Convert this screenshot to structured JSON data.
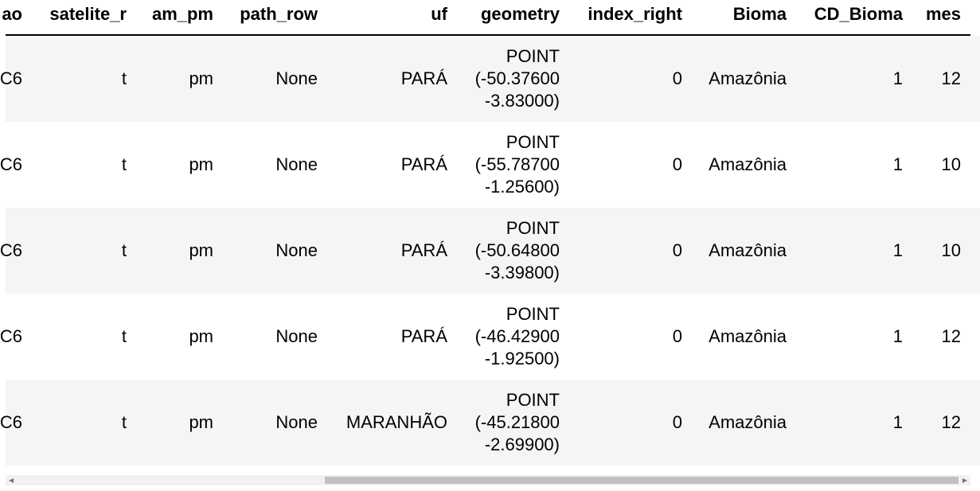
{
  "table": {
    "columns": [
      "ao",
      "satelite_r",
      "am_pm",
      "path_row",
      "uf",
      "geometry",
      "index_right",
      "Bioma",
      "CD_Bioma",
      "mes"
    ],
    "rows": [
      [
        "C6",
        "t",
        "pm",
        "None",
        "PARÁ",
        "POINT (-50.37600 -3.83000)",
        0,
        "Amazônia",
        1,
        12
      ],
      [
        "C6",
        "t",
        "pm",
        "None",
        "PARÁ",
        "POINT (-55.78700 -1.25600)",
        0,
        "Amazônia",
        1,
        10
      ],
      [
        "C6",
        "t",
        "pm",
        "None",
        "PARÁ",
        "POINT (-50.64800 -3.39800)",
        0,
        "Amazônia",
        1,
        10
      ],
      [
        "C6",
        "t",
        "pm",
        "None",
        "PARÁ",
        "POINT (-46.42900 -1.92500)",
        0,
        "Amazônia",
        1,
        12
      ],
      [
        "C6",
        "t",
        "pm",
        "None",
        "MARANHÃO",
        "POINT (-45.21800 -2.69900)",
        0,
        "Amazônia",
        1,
        12
      ]
    ]
  }
}
